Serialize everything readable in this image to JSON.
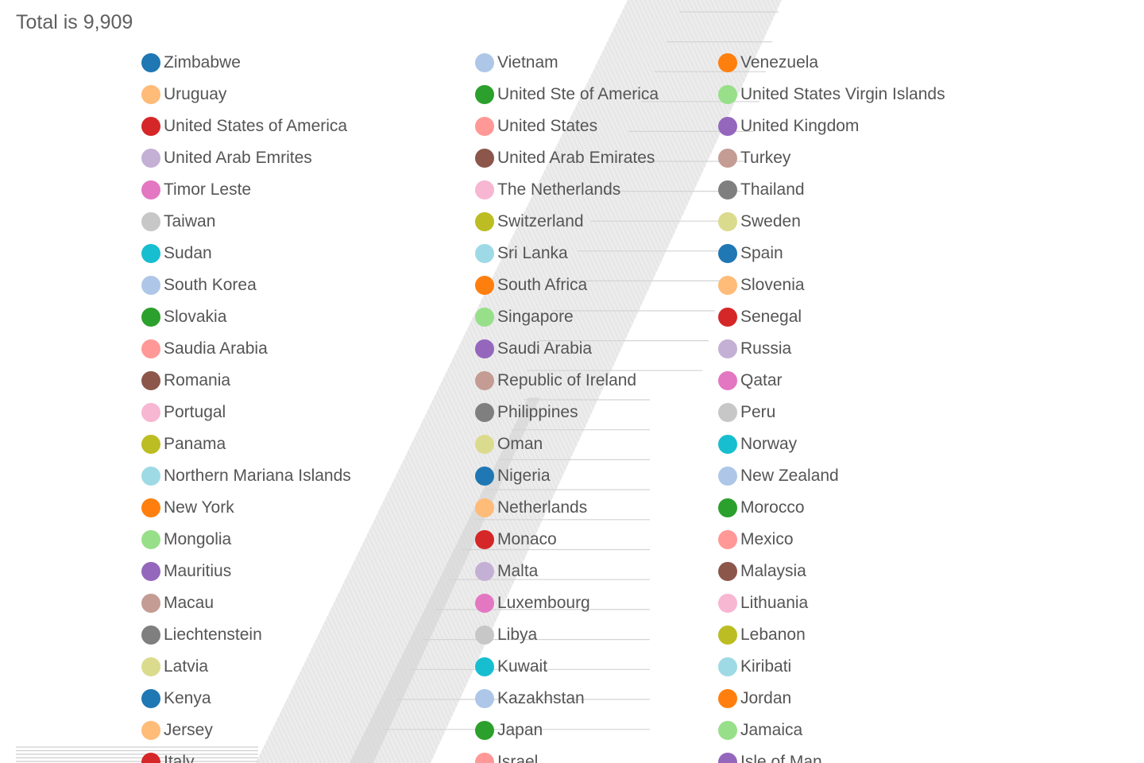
{
  "chart_data": {
    "type": "pie",
    "title": "Total is 9,909",
    "legend_position": "top",
    "palette": [
      "#1f77b4",
      "#aec7e8",
      "#ff7f0e",
      "#ffbb78",
      "#2ca02c",
      "#98df8a",
      "#d62728",
      "#ff9896",
      "#9467bd",
      "#c5b0d5",
      "#8c564b",
      "#c49c94",
      "#e377c2",
      "#f7b6d2",
      "#7f7f7f",
      "#c7c7c7",
      "#bcbd22",
      "#dbdb8d",
      "#17becf",
      "#9edae5"
    ],
    "connector_color": "#d4d4d4",
    "band_color": "#dcdcdc",
    "categories": [
      "Zimbabwe",
      "Vietnam",
      "Venezuela",
      "Uruguay",
      "United Ste of America",
      "United States Virgin Islands",
      "United States of America",
      "United States",
      "United Kingdom",
      "United Arab Emrites",
      "United Arab Emirates",
      "Turkey",
      "Timor Leste",
      "The Netherlands",
      "Thailand",
      "Taiwan",
      "Switzerland",
      "Sweden",
      "Sudan",
      "Sri Lanka",
      "Spain",
      "South Korea",
      "South Africa",
      "Slovenia",
      "Slovakia",
      "Singapore",
      "Senegal",
      "Saudia Arabia",
      "Saudi Arabia",
      "Russia",
      "Romania",
      "Republic of Ireland",
      "Qatar",
      "Portugal",
      "Philippines",
      "Peru",
      "Panama",
      "Oman",
      "Norway",
      "Northern Mariana Islands",
      "Nigeria",
      "New Zealand",
      "New York",
      "Netherlands",
      "Morocco",
      "Mongolia",
      "Monaco",
      "Mexico",
      "Mauritius",
      "Malta",
      "Malaysia",
      "Macau",
      "Luxembourg",
      "Lithuania",
      "Liechtenstein",
      "Libya",
      "Lebanon",
      "Latvia",
      "Kuwait",
      "Kiribati",
      "Kenya",
      "Kazakhstan",
      "Jordan",
      "Jersey",
      "Japan",
      "Jamaica",
      "Italy",
      "Israel",
      "Isle of Man"
    ]
  }
}
